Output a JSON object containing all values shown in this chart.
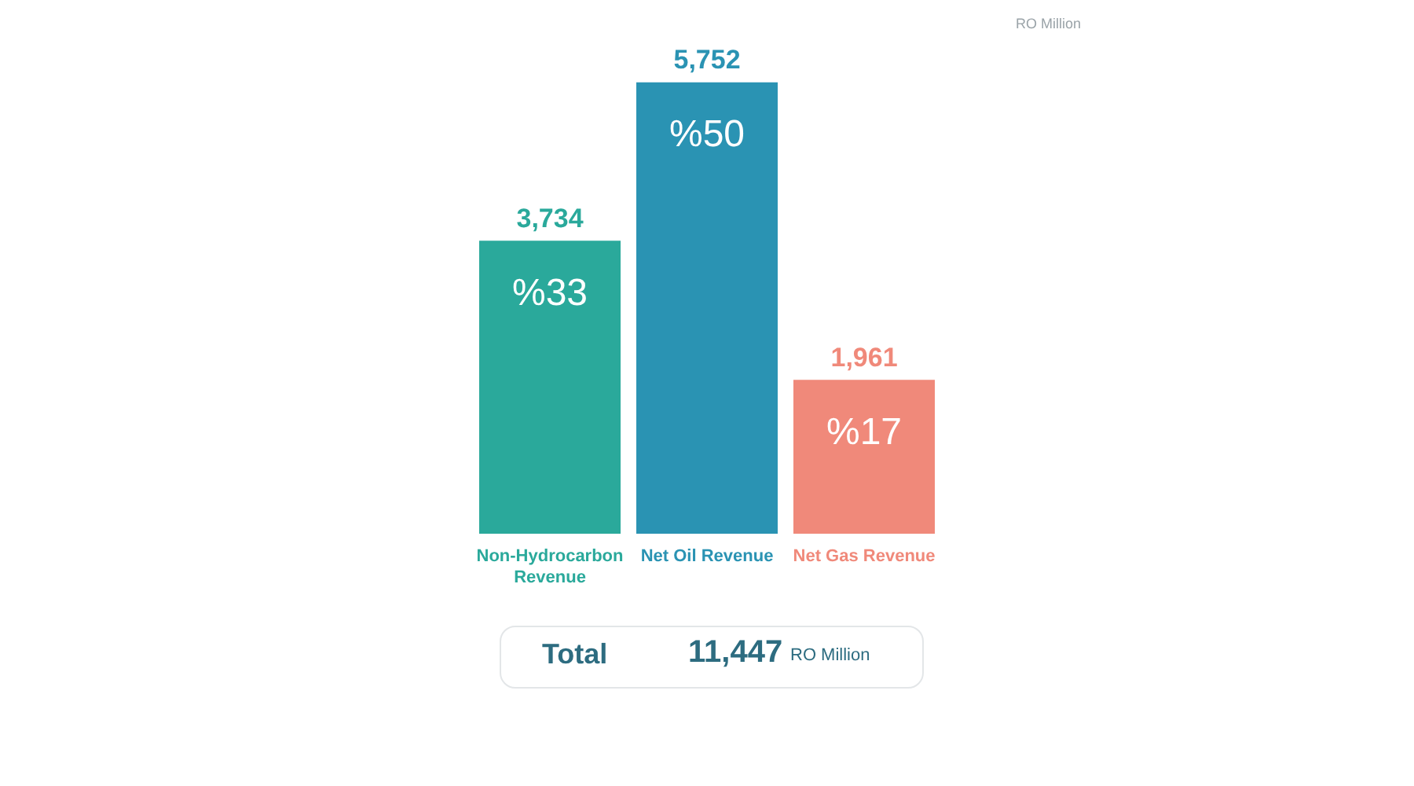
{
  "chart_data": {
    "type": "bar",
    "categories": [
      "Non-Hydrocarbon Revenue",
      "Net Oil Revenue",
      "Net Gas Revenue"
    ],
    "values": [
      3734,
      5752,
      1961
    ],
    "colors": [
      "#2aa99b",
      "#2a93b3",
      "#f0897a"
    ],
    "value_labels": [
      "3,734",
      "5,752",
      "1,961"
    ],
    "tick_labels": "x",
    "annotations": [
      "RO Million",
      "Total",
      "11,447",
      "RO Million",
      "%33",
      "%50",
      "%17"
    ]
  }
}
